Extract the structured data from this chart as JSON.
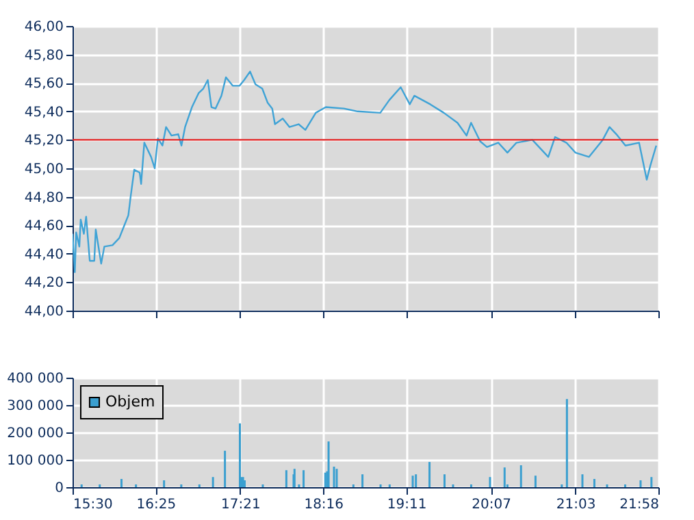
{
  "chart_data": [
    {
      "type": "line",
      "tick_labels": "y",
      "grid": true,
      "legend": false,
      "xlim": [
        15.5,
        21.9667
      ],
      "xticks": [
        {
          "value": 15.5,
          "label": null
        },
        {
          "value": 16.4167,
          "label": null
        },
        {
          "value": 17.35,
          "label": null
        },
        {
          "value": 18.2667,
          "label": null
        },
        {
          "value": 19.1833,
          "label": null
        },
        {
          "value": 20.1167,
          "label": null
        },
        {
          "value": 21.05,
          "label": null
        },
        {
          "value": 21.9667,
          "label": null
        }
      ],
      "ylim": [
        44,
        46
      ],
      "yticks": [
        {
          "value": 44,
          "label": "44,00"
        },
        {
          "value": 44.2,
          "label": "44,20"
        },
        {
          "value": 44.4,
          "label": "44,40"
        },
        {
          "value": 44.6,
          "label": "44,60"
        },
        {
          "value": 44.8,
          "label": "44,80"
        },
        {
          "value": 45,
          "label": "45,00"
        },
        {
          "value": 45.2,
          "label": "45,20"
        },
        {
          "value": 45.4,
          "label": "45,40"
        },
        {
          "value": 45.6,
          "label": "45,60"
        },
        {
          "value": 45.8,
          "label": "45,80"
        },
        {
          "value": 46,
          "label": "46,00"
        }
      ],
      "ref_lines": [
        {
          "axis": "y",
          "value": 45.2,
          "color": "#e02020"
        }
      ],
      "series": [
        {
          "color": "#3fa3d6",
          "x": [
            15.5,
            15.525,
            15.54,
            15.575,
            15.59,
            15.625,
            15.65,
            15.69,
            15.74,
            15.756,
            15.816,
            15.851,
            15.941,
            16.016,
            16.066,
            16.116,
            16.141,
            16.181,
            16.241,
            16.257,
            16.292,
            16.367,
            16.407,
            16.442,
            16.492,
            16.532,
            16.592,
            16.667,
            16.702,
            16.742,
            16.818,
            16.893,
            16.943,
            16.993,
            17.033,
            17.078,
            17.143,
            17.193,
            17.268,
            17.344,
            17.394,
            17.459,
            17.519,
            17.594,
            17.654,
            17.704,
            17.734,
            17.82,
            17.895,
            17.995,
            18.07,
            18.185,
            18.296,
            18.496,
            18.646,
            18.897,
            18.997,
            19.122,
            19.222,
            19.273,
            19.448,
            19.598,
            19.749,
            19.849,
            19.899,
            19.999,
            20.074,
            20.199,
            20.3,
            20.4,
            20.575,
            20.751,
            20.826,
            20.951,
            21.051,
            21.201,
            21.352,
            21.427,
            21.502,
            21.603,
            21.753,
            21.838,
            21.878,
            21.943
          ],
          "values": [
            44.54,
            44.27,
            44.55,
            44.45,
            44.64,
            44.54,
            44.66,
            44.35,
            44.35,
            44.57,
            44.33,
            44.45,
            44.46,
            44.51,
            44.59,
            44.67,
            44.8,
            44.99,
            44.97,
            44.89,
            45.18,
            45.08,
            45.0,
            45.21,
            45.16,
            45.29,
            45.23,
            45.24,
            45.16,
            45.29,
            45.43,
            45.53,
            45.56,
            45.62,
            45.43,
            45.42,
            45.51,
            45.64,
            45.58,
            45.58,
            45.62,
            45.68,
            45.59,
            45.56,
            45.46,
            45.42,
            45.31,
            45.35,
            45.29,
            45.31,
            45.27,
            45.39,
            45.43,
            45.42,
            45.4,
            45.39,
            45.48,
            45.57,
            45.45,
            45.51,
            45.45,
            45.39,
            45.32,
            45.23,
            45.32,
            45.19,
            45.15,
            45.18,
            45.11,
            45.18,
            45.2,
            45.08,
            45.22,
            45.18,
            45.11,
            45.08,
            45.2,
            45.29,
            45.24,
            45.16,
            45.18,
            44.92,
            45.02,
            45.16
          ]
        }
      ]
    },
    {
      "type": "bar",
      "grid": true,
      "legend": "top left",
      "xlim": [
        15.5,
        21.9667
      ],
      "xticks": [
        {
          "value": 15.5,
          "label": "15:30"
        },
        {
          "value": 16.4167,
          "label": "16:25"
        },
        {
          "value": 17.35,
          "label": "17:21"
        },
        {
          "value": 18.2667,
          "label": "18:16"
        },
        {
          "value": 19.1833,
          "label": "19:11"
        },
        {
          "value": 20.1167,
          "label": "20:07"
        },
        {
          "value": 21.05,
          "label": "21:03"
        },
        {
          "value": 21.9667,
          "label": "21:58"
        }
      ],
      "ylim": [
        0,
        400000
      ],
      "yticks": [
        0,
        {
          "value": 100000,
          "label": "100 000"
        },
        {
          "value": 200000,
          "label": "200 000"
        },
        {
          "value": 300000,
          "label": "300 000"
        },
        {
          "value": 400000,
          "label": "400 000"
        }
      ],
      "series": [
        {
          "name": "Objem",
          "color": "#3a9fd0",
          "x": [
            15.6,
            15.8,
            16.04,
            16.2,
            16.51,
            16.7,
            16.9,
            17.05,
            17.182,
            17.347,
            17.362,
            17.382,
            17.4,
            17.6,
            17.86,
            17.94,
            17.95,
            18.0,
            18.05,
            18.29,
            18.31,
            18.326,
            18.386,
            18.416,
            18.6,
            18.7,
            18.9,
            19.0,
            19.255,
            19.29,
            19.44,
            19.606,
            19.7,
            19.9,
            20.108,
            20.269,
            20.3,
            20.45,
            20.61,
            20.9,
            20.957,
            21.128,
            21.26,
            21.4,
            21.6,
            21.77,
            21.89
          ],
          "values": [
            10000,
            10000,
            30000,
            10000,
            25000,
            10000,
            10000,
            37000,
            133000,
            233000,
            37000,
            37000,
            25000,
            10000,
            62000,
            47000,
            67000,
            10000,
            62000,
            53000,
            58000,
            167000,
            75000,
            67000,
            10000,
            47000,
            10000,
            10000,
            42000,
            47000,
            92000,
            47000,
            10000,
            10000,
            37000,
            72000,
            10000,
            80000,
            42000,
            10000,
            322000,
            47000,
            30000,
            10000,
            10000,
            25000,
            37000
          ]
        }
      ]
    }
  ]
}
